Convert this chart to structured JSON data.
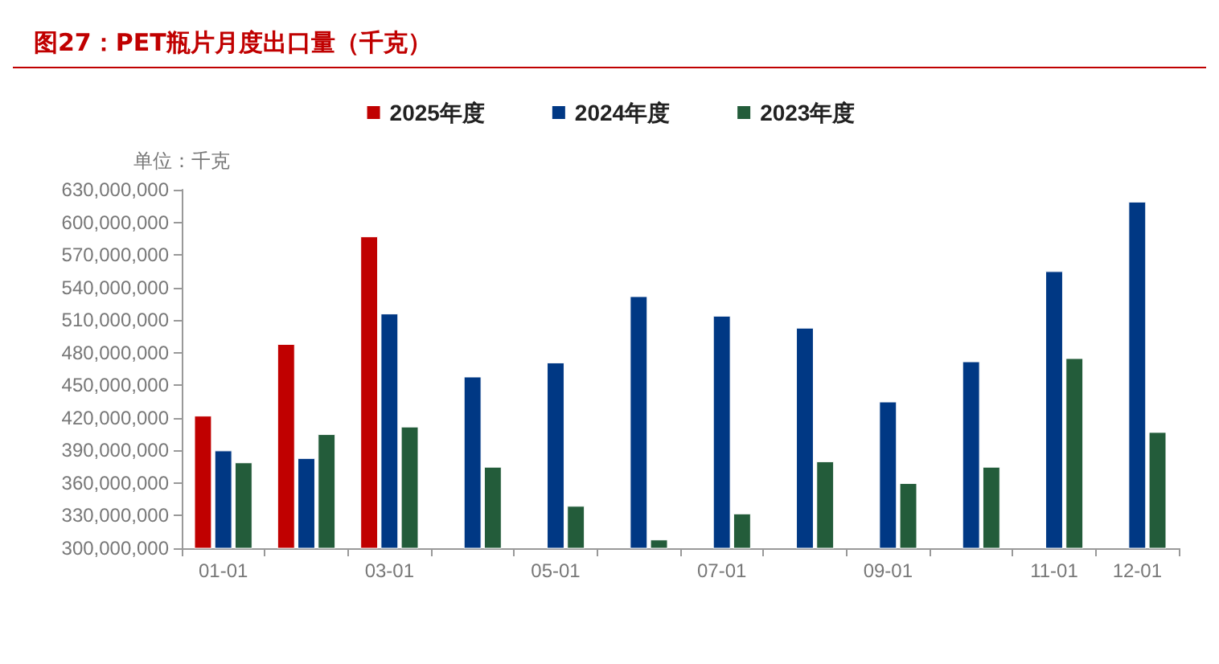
{
  "chart_data": {
    "type": "bar",
    "title": "图27：PET瓶片月度出口量（千克）",
    "ylabel": "单位：千克",
    "categories": [
      "01-01",
      null,
      "03-01",
      null,
      "05-01",
      null,
      "07-01",
      null,
      "09-01",
      null,
      "11-01",
      "12-01"
    ],
    "series": [
      {
        "name": "2025年度",
        "color": "#c00000",
        "values": [
          422000000,
          488000000,
          587000000,
          null,
          null,
          null,
          null,
          null,
          null,
          null,
          null,
          null
        ]
      },
      {
        "name": "2024年度",
        "color": "#003884",
        "values": [
          390000000,
          383000000,
          516000000,
          458000000,
          471000000,
          532000000,
          514000000,
          503000000,
          435000000,
          472000000,
          555000000,
          619000000
        ]
      },
      {
        "name": "2023年度",
        "color": "#235c3a",
        "values": [
          379000000,
          405000000,
          412000000,
          375000000,
          339000000,
          308000000,
          332000000,
          380000000,
          360000000,
          375000000,
          475000000,
          407000000
        ]
      }
    ],
    "ylim": [
      300000000,
      630000000
    ],
    "yticks": [
      {
        "value": 300000000,
        "label": "300,000,000"
      },
      {
        "value": 330000000,
        "label": "330,000,000"
      },
      {
        "value": 360000000,
        "label": "360,000,000"
      },
      {
        "value": 390000000,
        "label": "390,000,000"
      },
      {
        "value": 420000000,
        "label": "420,000,000"
      },
      {
        "value": 450000000,
        "label": "450,000,000"
      },
      {
        "value": 480000000,
        "label": "480,000,000"
      },
      {
        "value": 510000000,
        "label": "510,000,000"
      },
      {
        "value": 540000000,
        "label": "540,000,000"
      },
      {
        "value": 570000000,
        "label": "570,000,000"
      },
      {
        "value": 600000000,
        "label": "600,000,000"
      },
      {
        "value": 630000000,
        "label": "630,000,000"
      }
    ],
    "grid": false,
    "legend": "top"
  }
}
